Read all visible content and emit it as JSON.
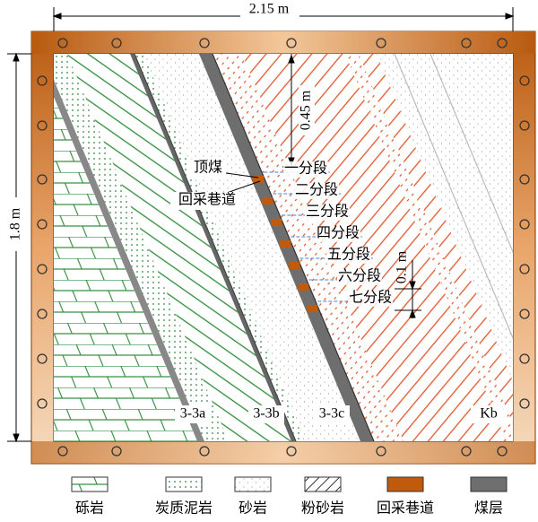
{
  "dimensions": {
    "width": "2.15 m",
    "height": "1.8 m",
    "top_coal": "0.45 m",
    "sublevel": "0.1 m"
  },
  "labels": {
    "top_coal": "顶煤",
    "roadway": "回采巷道"
  },
  "sublevels": [
    "一分段",
    "二分段",
    "三分段",
    "四分段",
    "五分段",
    "六分段",
    "七分段"
  ],
  "strata": [
    "3-3a",
    "3-3b",
    "3-3c",
    "Kb"
  ],
  "legend": [
    "砾岩",
    "炭质泥岩",
    "砂岩",
    "粉砂岩",
    "回采巷道",
    "煤层"
  ]
}
